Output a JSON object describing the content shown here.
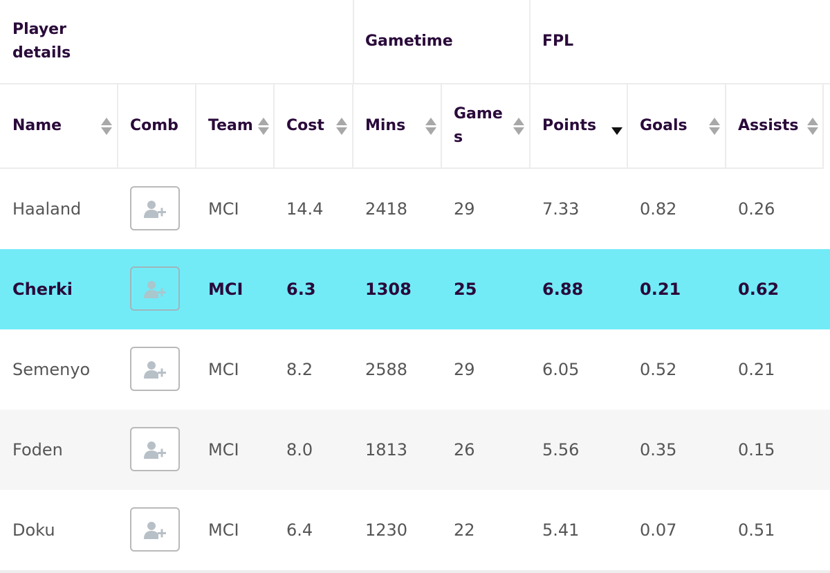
{
  "groups": {
    "player_details": "Player details",
    "gametime": "Gametime",
    "fpl": "FPL"
  },
  "columns": {
    "name": "Name",
    "comb": "Comb",
    "team": "Team",
    "cost": "Cost",
    "mins": "Mins",
    "games": "Games",
    "points": "Points",
    "goals": "Goals",
    "assists": "Assists"
  },
  "sort": {
    "column": "points",
    "direction": "descending"
  },
  "icons": {
    "sort": "sort-arrows-icon",
    "add_player": "add-user-icon"
  },
  "colors": {
    "highlight_row": "#72ebf7",
    "alt_row": "#f6f6f6",
    "header_text": "#2a0a3a"
  },
  "rows": [
    {
      "name": "Haaland",
      "team": "MCI",
      "cost": "14.4",
      "mins": "2418",
      "games": "29",
      "points": "7.33",
      "goals": "0.82",
      "assists": "0.26"
    },
    {
      "name": "Cherki",
      "team": "MCI",
      "cost": "6.3",
      "mins": "1308",
      "games": "25",
      "points": "6.88",
      "goals": "0.21",
      "assists": "0.62"
    },
    {
      "name": "Semenyo",
      "team": "MCI",
      "cost": "8.2",
      "mins": "2588",
      "games": "29",
      "points": "6.05",
      "goals": "0.52",
      "assists": "0.21"
    },
    {
      "name": "Foden",
      "team": "MCI",
      "cost": "8.0",
      "mins": "1813",
      "games": "26",
      "points": "5.56",
      "goals": "0.35",
      "assists": "0.15"
    },
    {
      "name": "Doku",
      "team": "MCI",
      "cost": "6.4",
      "mins": "1230",
      "games": "22",
      "points": "5.41",
      "goals": "0.07",
      "assists": "0.51"
    }
  ]
}
